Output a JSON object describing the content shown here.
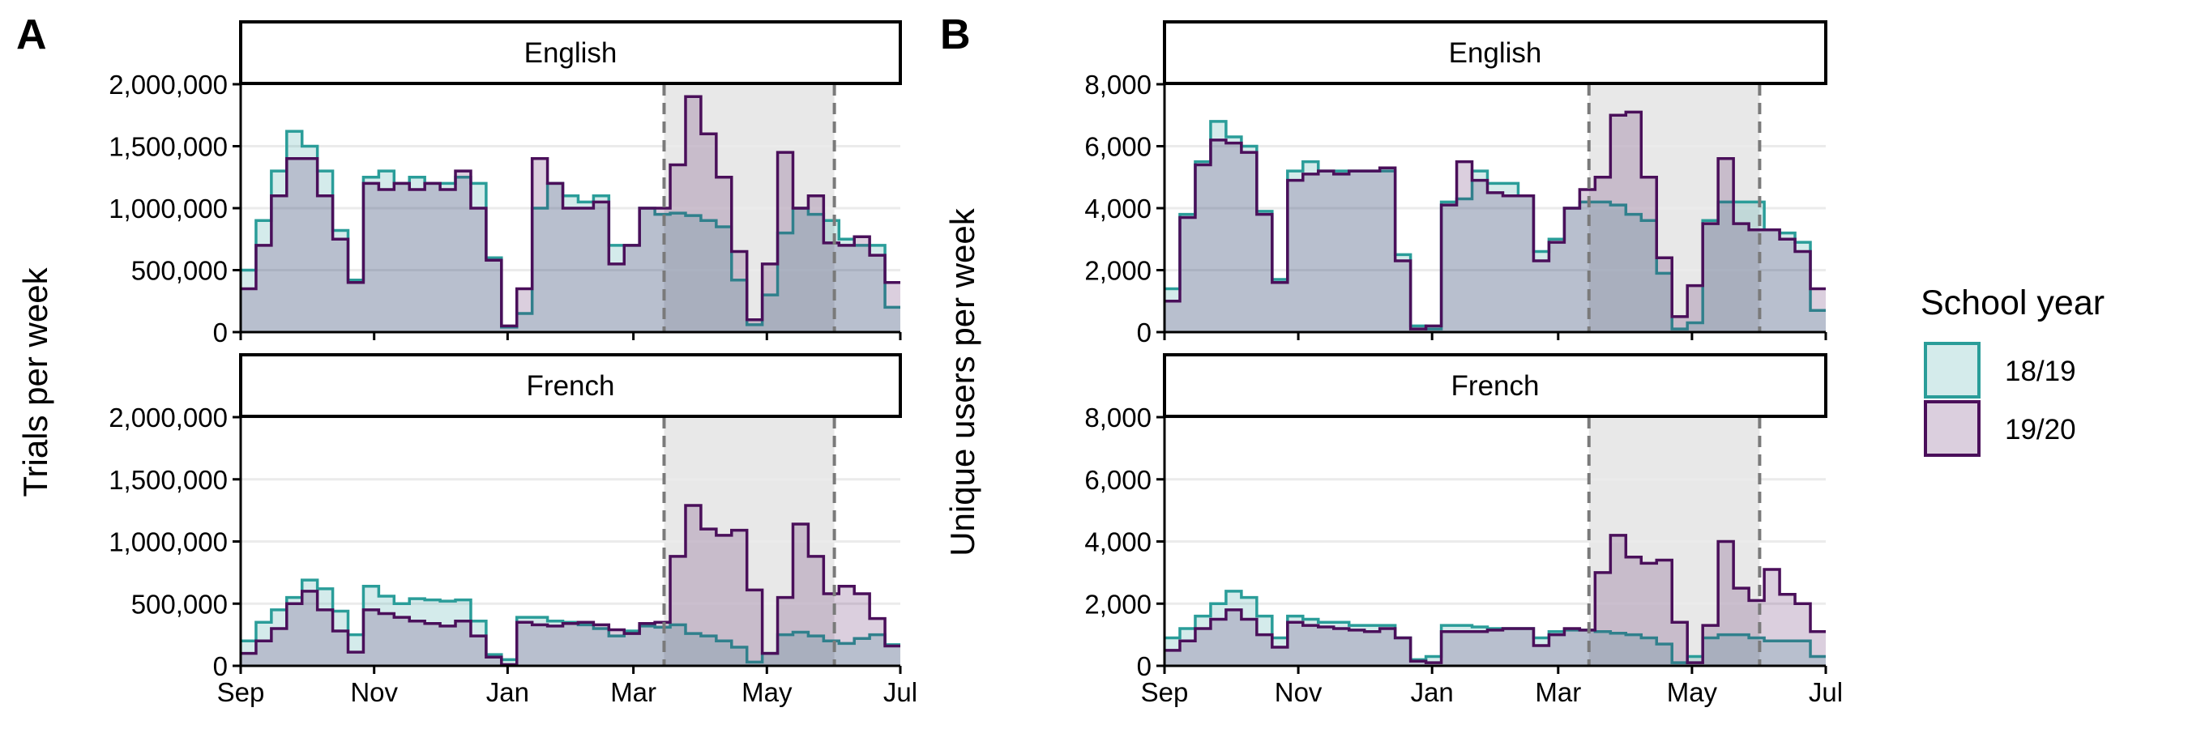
{
  "panel_letters": [
    "A",
    "B"
  ],
  "legend": {
    "title": "School year",
    "items": [
      {
        "label": "18/19",
        "color": "#2a9d99"
      },
      {
        "label": "19/20",
        "color": "#4a0f5a"
      }
    ]
  },
  "colors": {
    "series_18_19": "#2a9d99",
    "series_19_20": "#4a0f5a",
    "lockdown_shade": "#e8e8e8",
    "gridline": "#ebebeb",
    "lockdown_line": "#7a7a7a"
  },
  "chart_data": [
    {
      "type": "area",
      "panel": "A",
      "ylabel": "Trials per week",
      "ylim": [
        0,
        2000000
      ],
      "yticks": [
        0,
        500000,
        1000000,
        1500000,
        2000000
      ],
      "ytick_labels": [
        "0",
        "500,000",
        "1,000,000",
        "1,500,000",
        "2,000,000"
      ],
      "xlim": [
        0,
        43
      ],
      "xticks": [
        0,
        8.7,
        17.4,
        25.6,
        34.3,
        43
      ],
      "xtick_labels": [
        "Sep",
        "Nov",
        "Jan",
        "Mar",
        "May",
        "Jul"
      ],
      "x_unit": "weeks since start of school year",
      "lockdown_weeks": [
        27.6,
        38.7
      ],
      "facets": [
        {
          "label": "English",
          "series": [
            {
              "name": "18/19",
              "values": [
                500000,
                900000,
                1300000,
                1620000,
                1500000,
                1300000,
                820000,
                420000,
                1250000,
                1300000,
                1200000,
                1250000,
                1200000,
                1200000,
                1250000,
                1200000,
                600000,
                40000,
                150000,
                1000000,
                1200000,
                1100000,
                1050000,
                1100000,
                700000,
                700000,
                1000000,
                950000,
                960000,
                940000,
                900000,
                850000,
                420000,
                60000,
                300000,
                800000,
                1000000,
                950000,
                900000,
                750000,
                700000,
                700000,
                200000
              ]
            },
            {
              "name": "19/20",
              "values": [
                350000,
                700000,
                1100000,
                1400000,
                1400000,
                1100000,
                750000,
                400000,
                1200000,
                1150000,
                1200000,
                1150000,
                1200000,
                1150000,
                1300000,
                1000000,
                580000,
                50000,
                350000,
                1400000,
                1200000,
                1000000,
                1000000,
                1050000,
                550000,
                700000,
                1000000,
                1000000,
                1350000,
                1900000,
                1600000,
                1250000,
                650000,
                100000,
                550000,
                1450000,
                1000000,
                1100000,
                720000,
                700000,
                770000,
                620000,
                400000
              ]
            }
          ]
        },
        {
          "label": "French",
          "series": [
            {
              "name": "18/19",
              "values": [
                200000,
                350000,
                450000,
                550000,
                690000,
                620000,
                440000,
                250000,
                640000,
                560000,
                500000,
                540000,
                530000,
                520000,
                530000,
                360000,
                90000,
                50000,
                390000,
                390000,
                360000,
                350000,
                330000,
                300000,
                240000,
                280000,
                320000,
                310000,
                330000,
                260000,
                240000,
                200000,
                150000,
                30000,
                100000,
                250000,
                270000,
                240000,
                200000,
                180000,
                220000,
                250000,
                170000
              ]
            },
            {
              "name": "19/20",
              "values": [
                100000,
                200000,
                300000,
                500000,
                600000,
                450000,
                280000,
                110000,
                450000,
                420000,
                390000,
                360000,
                340000,
                320000,
                360000,
                240000,
                70000,
                10000,
                350000,
                330000,
                320000,
                340000,
                350000,
                330000,
                290000,
                260000,
                340000,
                350000,
                880000,
                1290000,
                1100000,
                1050000,
                1090000,
                610000,
                100000,
                550000,
                1140000,
                880000,
                580000,
                640000,
                580000,
                380000,
                160000
              ]
            }
          ]
        }
      ]
    },
    {
      "type": "area",
      "panel": "B",
      "ylabel": "Unique users per week",
      "ylim": [
        0,
        8000
      ],
      "yticks": [
        0,
        2000,
        4000,
        6000,
        8000
      ],
      "ytick_labels": [
        "0",
        "2,000",
        "4,000",
        "6,000",
        "8,000"
      ],
      "xlim": [
        0,
        43
      ],
      "xticks": [
        0,
        8.7,
        17.4,
        25.6,
        34.3,
        43
      ],
      "xtick_labels": [
        "Sep",
        "Nov",
        "Jan",
        "Mar",
        "May",
        "Jul"
      ],
      "x_unit": "weeks since start of school year",
      "lockdown_weeks": [
        27.6,
        38.7
      ],
      "facets": [
        {
          "label": "English",
          "series": [
            {
              "name": "18/19",
              "values": [
                1400,
                3800,
                5500,
                6800,
                6300,
                6000,
                3900,
                1700,
                5200,
                5500,
                5200,
                5200,
                5200,
                5200,
                5200,
                2500,
                200,
                100,
                4200,
                4300,
                5200,
                4800,
                4800,
                4400,
                2600,
                3000,
                4000,
                4200,
                4200,
                4100,
                3800,
                3600,
                1900,
                100,
                300,
                3600,
                4200,
                4200,
                4200,
                3300,
                3200,
                2900,
                700
              ]
            },
            {
              "name": "19/20",
              "values": [
                1000,
                3700,
                5400,
                6200,
                6100,
                5800,
                3800,
                1600,
                4900,
                5100,
                5200,
                5100,
                5200,
                5200,
                5300,
                2300,
                100,
                200,
                4100,
                5500,
                4900,
                4500,
                4400,
                4400,
                2300,
                2900,
                4000,
                4600,
                5000,
                7000,
                7100,
                5000,
                2400,
                500,
                1500,
                3500,
                5600,
                3500,
                3300,
                3300,
                3000,
                2600,
                1400
              ]
            }
          ]
        },
        {
          "label": "French",
          "series": [
            {
              "name": "18/19",
              "values": [
                900,
                1200,
                1600,
                2000,
                2400,
                2200,
                1600,
                900,
                1600,
                1500,
                1400,
                1400,
                1300,
                1300,
                1300,
                900,
                200,
                300,
                1300,
                1300,
                1250,
                1200,
                1200,
                1200,
                900,
                1100,
                1150,
                1150,
                1100,
                1050,
                1000,
                900,
                700,
                100,
                300,
                900,
                1000,
                1000,
                900,
                800,
                800,
                800,
                300
              ]
            },
            {
              "name": "19/20",
              "values": [
                500,
                800,
                1200,
                1500,
                1800,
                1500,
                1000,
                600,
                1400,
                1300,
                1250,
                1200,
                1150,
                1100,
                1200,
                900,
                150,
                100,
                1100,
                1100,
                1100,
                1150,
                1200,
                1200,
                650,
                1000,
                1200,
                1150,
                3000,
                4200,
                3500,
                3300,
                3400,
                1400,
                100,
                1300,
                4000,
                2500,
                2100,
                3100,
                2300,
                2000,
                1100
              ]
            }
          ]
        }
      ]
    }
  ]
}
